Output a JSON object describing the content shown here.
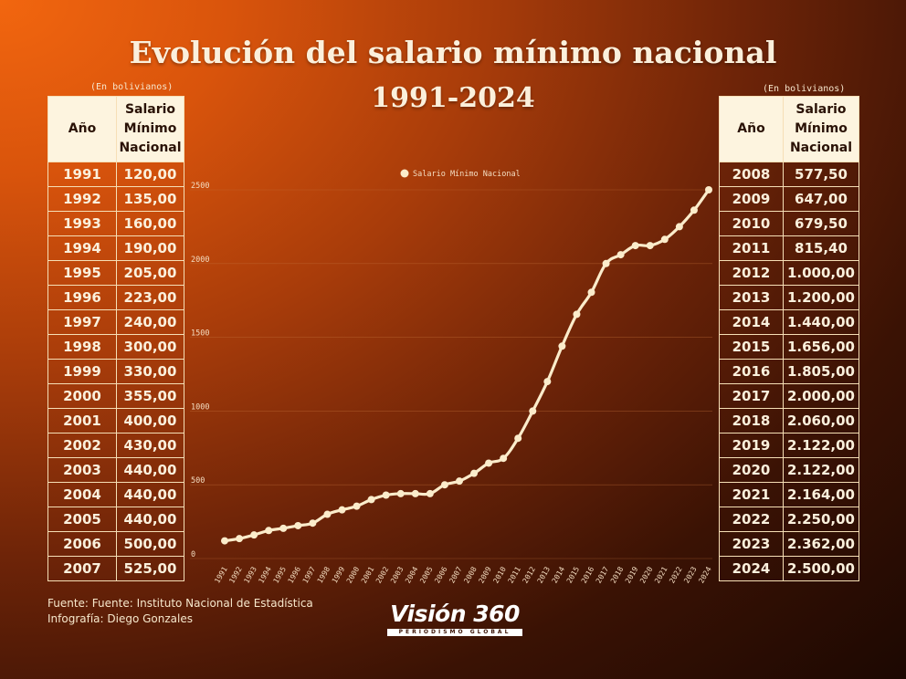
{
  "header": {
    "title_line1": "Evolución del salario mínimo nacional",
    "title_line2": "1991-2024"
  },
  "tables": {
    "unit_label": "(En bolivianos)",
    "col_year": "Año",
    "col_salary_l1": "Salario",
    "col_salary_l2": "Mínimo",
    "col_salary_l3": "Nacional",
    "left_rows": [
      {
        "year": "1991",
        "value": "120,00"
      },
      {
        "year": "1992",
        "value": "135,00"
      },
      {
        "year": "1993",
        "value": "160,00"
      },
      {
        "year": "1994",
        "value": "190,00"
      },
      {
        "year": "1995",
        "value": "205,00"
      },
      {
        "year": "1996",
        "value": "223,00"
      },
      {
        "year": "1997",
        "value": "240,00"
      },
      {
        "year": "1998",
        "value": "300,00"
      },
      {
        "year": "1999",
        "value": "330,00"
      },
      {
        "year": "2000",
        "value": "355,00"
      },
      {
        "year": "2001",
        "value": "400,00"
      },
      {
        "year": "2002",
        "value": "430,00"
      },
      {
        "year": "2003",
        "value": "440,00"
      },
      {
        "year": "2004",
        "value": "440,00"
      },
      {
        "year": "2005",
        "value": "440,00"
      },
      {
        "year": "2006",
        "value": "500,00"
      },
      {
        "year": "2007",
        "value": "525,00"
      }
    ],
    "right_rows": [
      {
        "year": "2008",
        "value": "577,50"
      },
      {
        "year": "2009",
        "value": "647,00"
      },
      {
        "year": "2010",
        "value": "679,50"
      },
      {
        "year": "2011",
        "value": "815,40"
      },
      {
        "year": "2012",
        "value": "1.000,00"
      },
      {
        "year": "2013",
        "value": "1.200,00"
      },
      {
        "year": "2014",
        "value": "1.440,00"
      },
      {
        "year": "2015",
        "value": "1.656,00"
      },
      {
        "year": "2016",
        "value": "1.805,00"
      },
      {
        "year": "2017",
        "value": "2.000,00"
      },
      {
        "year": "2018",
        "value": "2.060,00"
      },
      {
        "year": "2019",
        "value": "2.122,00"
      },
      {
        "year": "2020",
        "value": "2.122,00"
      },
      {
        "year": "2021",
        "value": "2.164,00"
      },
      {
        "year": "2022",
        "value": "2.250,00"
      },
      {
        "year": "2023",
        "value": "2.362,00"
      },
      {
        "year": "2024",
        "value": "2.500,00"
      }
    ]
  },
  "chart_data": {
    "type": "line",
    "title": "",
    "xlabel": "",
    "ylabel": "",
    "x": [
      "1991",
      "1992",
      "1993",
      "1994",
      "1995",
      "1996",
      "1997",
      "1998",
      "1999",
      "2000",
      "2001",
      "2002",
      "2003",
      "2004",
      "2005",
      "2006",
      "2007",
      "2008",
      "2009",
      "2010",
      "2011",
      "2012",
      "2013",
      "2014",
      "2015",
      "2016",
      "2017",
      "2018",
      "2019",
      "2020",
      "2021",
      "2022",
      "2023",
      "2024"
    ],
    "series": [
      {
        "name": "Salario Mínimo Nacional",
        "values": [
          120,
          135,
          160,
          190,
          205,
          223,
          240,
          300,
          330,
          355,
          400,
          430,
          440,
          440,
          440,
          500,
          525,
          577.5,
          647,
          679.5,
          815.4,
          1000,
          1200,
          1440,
          1656,
          1805,
          2000,
          2060,
          2122,
          2122,
          2164,
          2250,
          2362,
          2500
        ]
      }
    ],
    "yticks": [
      "0",
      "500",
      "1000",
      "1500",
      "2000",
      "2500"
    ],
    "ylim": [
      0,
      2500
    ],
    "grid": true,
    "legend": "top",
    "colors": {
      "line": "#fbeccb",
      "grid": "#c2703a",
      "tick_text": "#f3dcc0"
    }
  },
  "footer": {
    "source": "Fuente: Fuente: Instituto Nacional de Estadística",
    "credit": "Infografía: Diego Gonzales"
  },
  "logo": {
    "main": "Visión 360",
    "sub": "PERIODISMO GLOBAL"
  }
}
